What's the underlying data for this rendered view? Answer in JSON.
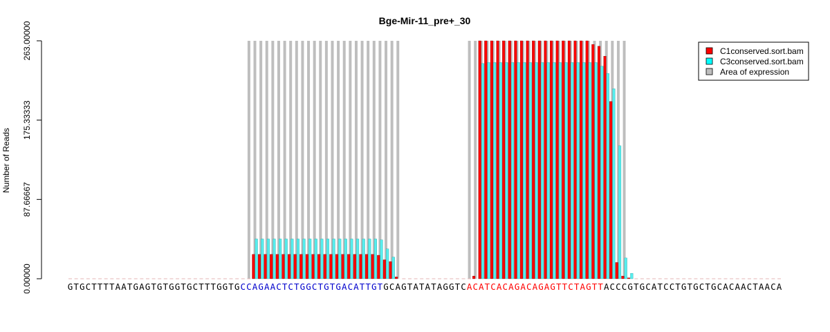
{
  "chart_data": {
    "type": "bar",
    "title": "Bge-Mir-11_pre+_30",
    "xlabel": "",
    "ylabel": "Number of Reads",
    "ylim": [
      0,
      263
    ],
    "y_ticks": [
      "0.00000",
      "87.66667",
      "175.33333",
      "263.00000"
    ],
    "y_tick_values": [
      0,
      87.66667,
      175.33333,
      263
    ],
    "sequence": "GTGCTTTTAATGAGTGTGGTGCTTTGGTGCCAGAACTCTGGCTGTGACATTGTGCAGTATATAGGTCACATCACAGACAGAGTTCTAGTTACCCGTGCATCCTGTGCTGCACAACTAACA",
    "highlight_regions": [
      {
        "start": 29,
        "end": 52,
        "color": "#0000cc"
      },
      {
        "start": 67,
        "end": 89,
        "color": "#ff0000"
      }
    ],
    "legend": {
      "position": "top-right",
      "entries": [
        {
          "label": "C1conserved.sort.bam",
          "color": "#ff0000"
        },
        {
          "label": "C3conserved.sort.bam",
          "color": "#00ffff"
        },
        {
          "label": "Area of expression",
          "color": "#bebebe"
        }
      ]
    },
    "series": [
      {
        "name": "C1conserved.sort.bam",
        "color": "#ff0000",
        "values": [
          0,
          0,
          0,
          0,
          0,
          0,
          0,
          0,
          0,
          0,
          0,
          0,
          0,
          0,
          0,
          0,
          0,
          0,
          0,
          0,
          0,
          0,
          0,
          0,
          0,
          0,
          0,
          0,
          0,
          0,
          0,
          27,
          27,
          27,
          27,
          27,
          27,
          27,
          27,
          27,
          27,
          27,
          27,
          27,
          27,
          27,
          27,
          27,
          27,
          27,
          27,
          27,
          26,
          21,
          19,
          2,
          0,
          0,
          0,
          0,
          0,
          0,
          0,
          0,
          0,
          0,
          0,
          0,
          3,
          263,
          263,
          263,
          263,
          263,
          263,
          263,
          263,
          263,
          263,
          263,
          263,
          263,
          263,
          263,
          263,
          263,
          263,
          263,
          259,
          257,
          246,
          196,
          18,
          3,
          1,
          0,
          0,
          0,
          0,
          0,
          0,
          0,
          0,
          0,
          0,
          0,
          0,
          0,
          0,
          0,
          0,
          0,
          0,
          0,
          0,
          0,
          0,
          0,
          0,
          0,
          0,
          0,
          0,
          0
        ]
      },
      {
        "name": "C3conserved.sort.bam",
        "color": "#00ffff",
        "values": [
          0,
          0,
          0,
          0,
          0,
          0,
          0,
          0,
          0,
          0,
          0,
          0,
          0,
          0,
          0,
          0,
          0,
          0,
          0,
          0,
          0,
          0,
          0,
          0,
          0,
          0,
          0,
          0,
          0,
          0,
          0,
          44,
          44,
          44,
          44,
          44,
          44,
          44,
          44,
          44,
          44,
          44,
          44,
          44,
          44,
          44,
          44,
          44,
          44,
          44,
          44,
          44,
          43,
          33,
          24,
          0,
          0,
          0,
          0,
          0,
          0,
          0,
          0,
          0,
          0,
          0,
          0,
          0,
          0,
          238,
          239,
          239,
          239,
          239,
          239,
          239,
          239,
          239,
          239,
          239,
          239,
          239,
          239,
          239,
          239,
          239,
          239,
          239,
          239,
          235,
          227,
          210,
          147,
          23,
          6,
          0,
          0,
          0,
          0,
          0,
          0,
          0,
          0,
          0,
          0,
          0,
          0,
          0,
          0,
          0,
          0,
          0,
          0,
          0,
          0,
          0,
          0,
          0,
          0,
          0,
          0,
          0,
          0,
          0
        ]
      }
    ],
    "expression_areas": [
      {
        "start": 30,
        "end": 55
      },
      {
        "start": 67,
        "end": 93
      }
    ]
  }
}
